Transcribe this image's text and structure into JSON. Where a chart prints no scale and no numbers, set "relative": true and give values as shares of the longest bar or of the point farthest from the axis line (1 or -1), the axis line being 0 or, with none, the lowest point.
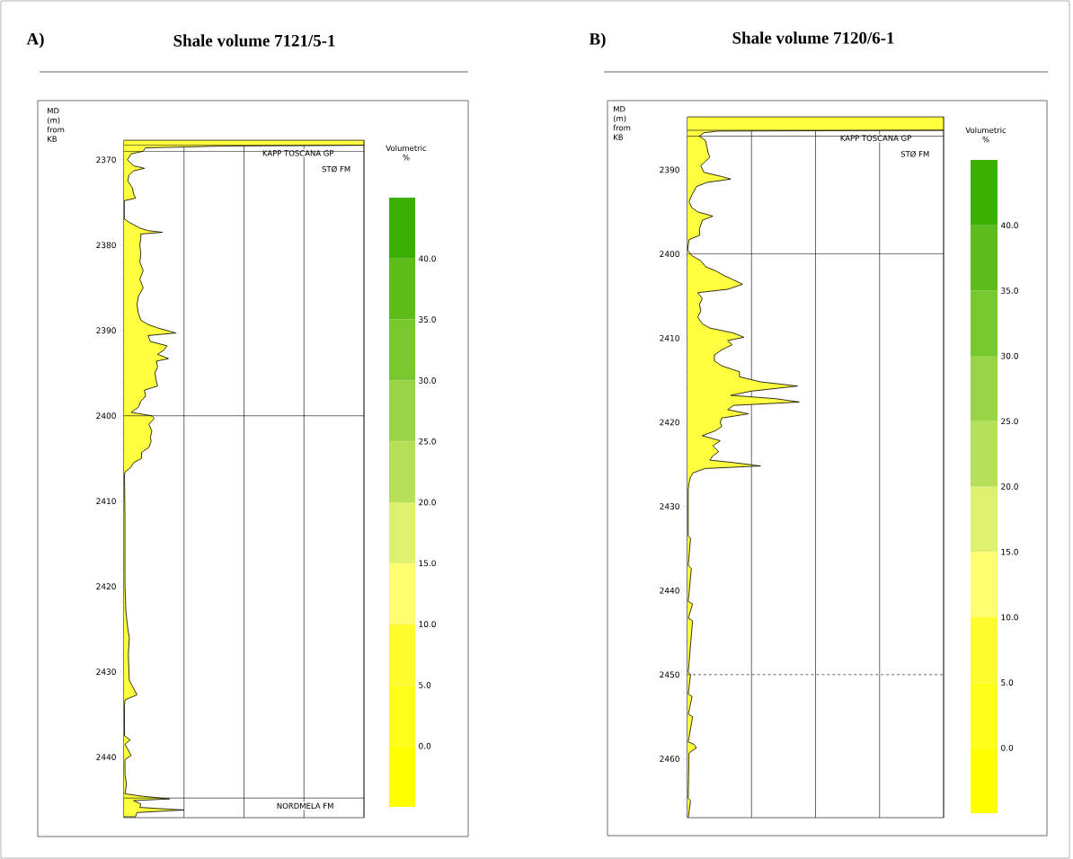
{
  "chart_data": [
    {
      "type": "area",
      "orientation": "horizontal",
      "relative": true,
      "title": "Shale volume 7121/5-1",
      "annotations": [
        "A)"
      ],
      "ylabel": "MD (m) from KB",
      "clabel": "Volumetric %",
      "ylim": [
        2447.1,
        2367.7
      ],
      "yticks": [
        2370,
        2380,
        2390,
        2400,
        2410,
        2420,
        2430,
        2440
      ],
      "grid": "x",
      "tick_labels": "y",
      "marker": "none",
      "clim": [
        -5,
        45
      ],
      "cticks": [
        {
          "value": 0,
          "label": "0.0"
        },
        {
          "value": 5,
          "label": "5.0"
        },
        {
          "value": 10,
          "label": "10.0"
        },
        {
          "value": 15,
          "label": "15.0"
        },
        {
          "value": 20,
          "label": "20.0"
        },
        {
          "value": 25,
          "label": "25.0"
        },
        {
          "value": 30,
          "label": "30.0"
        },
        {
          "value": 35,
          "label": "35.0"
        },
        {
          "value": 40,
          "label": "40.0"
        }
      ],
      "ref_lines": [
        {
          "axis": "y",
          "value": 2368.3,
          "label": "KAPP TOSCANA GP"
        },
        {
          "axis": "y",
          "value": 2369.0,
          "label": "STØ FM"
        },
        {
          "axis": "y",
          "value": 2400
        },
        {
          "axis": "y",
          "value": 2444.8,
          "label": "NORDMELA FM"
        }
      ],
      "series": [
        {
          "color": "#ffff40",
          "values": [
            1,
            1,
            0.4,
            0.09,
            0.08,
            0.03,
            0.014,
            0.04,
            0.085,
            0.04,
            0.02,
            0.016,
            0.035,
            0.04,
            0.048,
            0,
            0,
            0.02,
            0.066,
            0.1,
            0.16,
            0.07,
            0.07,
            0.066,
            0.07,
            0.066,
            0.08,
            0.066,
            0.08,
            0.06,
            0.054,
            0.06,
            0.07,
            0.1,
            0.14,
            0.216,
            0.1,
            0.11,
            0.18,
            0.166,
            0.14,
            0.185,
            0.135,
            0.14,
            0.129,
            0.135,
            0.14,
            0.085,
            0.09,
            0.07,
            0.06,
            0.03,
            0.116,
            0.126,
            0.104,
            0.116,
            0.11,
            0.113,
            0.104,
            0.073,
            0.073,
            0.04,
            0.03,
            0.004,
            0.002,
            0.004,
            0.004,
            0.004,
            0.008,
            0.016,
            0.022,
            0.018,
            0.022,
            0.054,
            0.004,
            0.002,
            0.002,
            0.026,
            0.004,
            0.03,
            0.004,
            0.004,
            0.01,
            0.004,
            0.08,
            0.19,
            0.04,
            0.07,
            0.066,
            0.25,
            0.054,
            0.048
          ],
          "x": [
            2367.7,
            2368.3,
            2368.4,
            2368.6,
            2369.0,
            2369.3,
            2370.0,
            2370.7,
            2371.0,
            2371.3,
            2371.8,
            2372.5,
            2373.3,
            2374.0,
            2374.5,
            2374.8,
            2376.9,
            2377.3,
            2378.0,
            2378.3,
            2378.5,
            2378.7,
            2379.2,
            2380.0,
            2381.0,
            2382.0,
            2383.0,
            2384.0,
            2385.0,
            2386.0,
            2387.0,
            2388.0,
            2388.8,
            2389.3,
            2389.7,
            2390.3,
            2390.6,
            2391.3,
            2391.8,
            2392.3,
            2392.8,
            2393.3,
            2393.6,
            2394.3,
            2395.0,
            2396.0,
            2396.5,
            2397.0,
            2397.7,
            2398.3,
            2399.0,
            2399.6,
            2400.0,
            2400.3,
            2401.0,
            2401.8,
            2402.5,
            2403.0,
            2403.7,
            2404.3,
            2405.0,
            2405.5,
            2406.0,
            2406.6,
            2407.0,
            2412.0,
            2415.0,
            2420.0,
            2423.0,
            2425.0,
            2426.0,
            2428.0,
            2431.0,
            2432.7,
            2433.3,
            2434.0,
            2437.5,
            2438.0,
            2438.5,
            2439.8,
            2440.3,
            2442.0,
            2443.2,
            2444.3,
            2444.6,
            2444.9,
            2445.1,
            2445.5,
            2445.9,
            2446.2,
            2446.5,
            2447.0
          ]
        }
      ]
    },
    {
      "type": "area",
      "orientation": "horizontal",
      "relative": true,
      "title": "Shale volume 7120/6-1",
      "annotations": [
        "B)"
      ],
      "ylabel": "MD (m) from KB",
      "clabel": "Volumetric %",
      "ylim": [
        2467.0,
        2383.7
      ],
      "yticks": [
        2390,
        2400,
        2410,
        2420,
        2430,
        2440,
        2450,
        2460
      ],
      "grid": "x",
      "tick_labels": "y",
      "marker": "none",
      "clim": [
        -5,
        45
      ],
      "cticks": [
        {
          "value": 0,
          "label": "0.0"
        },
        {
          "value": 5,
          "label": "5.0"
        },
        {
          "value": 10,
          "label": "10.0"
        },
        {
          "value": 15,
          "label": "15.0"
        },
        {
          "value": 20,
          "label": "20.0"
        },
        {
          "value": 25,
          "label": "25.0"
        },
        {
          "value": 30,
          "label": "30.0"
        },
        {
          "value": 35,
          "label": "35.0"
        },
        {
          "value": 40,
          "label": "40.0"
        }
      ],
      "ref_lines": [
        {
          "axis": "y",
          "value": 2385.3,
          "label": "KAPP TOSCANA GP"
        },
        {
          "axis": "y",
          "value": 2386.0,
          "label": "STØ FM"
        },
        {
          "axis": "y",
          "value": 2400
        },
        {
          "axis": "y",
          "value": 2450,
          "line_style": "dashed"
        }
      ],
      "series": [
        {
          "color": "#ffff40",
          "values": [
            1,
            1,
            0.116,
            0.064,
            0.046,
            0.07,
            0.076,
            0.081,
            0.087,
            0.07,
            0.052,
            0.064,
            0.134,
            0.169,
            0.076,
            0.035,
            0.017,
            0.006,
            0.017,
            0.04,
            0.099,
            0.058,
            0.047,
            0.047,
            0.006,
            0,
            0.017,
            0.052,
            0.07,
            0.11,
            0.145,
            0.174,
            0.215,
            0.157,
            0.04,
            0.058,
            0.047,
            0.052,
            0.04,
            0.058,
            0.087,
            0.18,
            0.22,
            0.157,
            0.174,
            0.134,
            0.105,
            0.105,
            0.134,
            0.203,
            0.203,
            0.285,
            0.43,
            0.25,
            0.169,
            0.343,
            0.436,
            0.18,
            0.157,
            0.238,
            0.134,
            0.128,
            0.134,
            0.11,
            0.058,
            0.128,
            0.099,
            0.122,
            0.099,
            0.087,
            0.18,
            0.285,
            0.07,
            0.023,
            0.012,
            0.006,
            0.003,
            0.003,
            0.012,
            0.003,
            0.015,
            0.003,
            0.02,
            0.003,
            0.02,
            0.003,
            0.012,
            0.003,
            0.018,
            0.003,
            0.02,
            0.003,
            0.026,
            0.035,
            0.006,
            0.003,
            0.012,
            0.003
          ],
          "x": [
            2383.7,
            2385.3,
            2385.4,
            2385.6,
            2386.0,
            2386.5,
            2387.3,
            2388.0,
            2388.5,
            2389.0,
            2389.5,
            2390.3,
            2390.8,
            2391.1,
            2391.5,
            2392.0,
            2393.0,
            2393.8,
            2394.5,
            2395.0,
            2395.5,
            2396.0,
            2397.0,
            2397.8,
            2398.3,
            2399.5,
            2400.2,
            2400.8,
            2401.5,
            2402.0,
            2402.6,
            2403.0,
            2403.6,
            2404.2,
            2404.6,
            2405.3,
            2406.0,
            2406.8,
            2407.5,
            2408.3,
            2408.8,
            2409.4,
            2409.9,
            2410.3,
            2410.8,
            2411.4,
            2412.0,
            2412.7,
            2413.3,
            2414.0,
            2414.6,
            2415.2,
            2415.7,
            2416.3,
            2416.8,
            2417.2,
            2417.6,
            2418.0,
            2418.5,
            2419.0,
            2419.5,
            2420.0,
            2420.5,
            2421.0,
            2421.6,
            2422.2,
            2422.8,
            2423.5,
            2424.0,
            2424.5,
            2424.8,
            2425.2,
            2425.5,
            2426.0,
            2426.5,
            2427.2,
            2428.0,
            2433.5,
            2433.8,
            2437.0,
            2437.4,
            2441.3,
            2441.6,
            2443.3,
            2443.6,
            2449.7,
            2450.0,
            2452.3,
            2452.6,
            2454.7,
            2455.0,
            2458.0,
            2458.3,
            2458.7,
            2459.3,
            2464.7,
            2465.0,
            2467.0
          ]
        }
      ]
    }
  ]
}
